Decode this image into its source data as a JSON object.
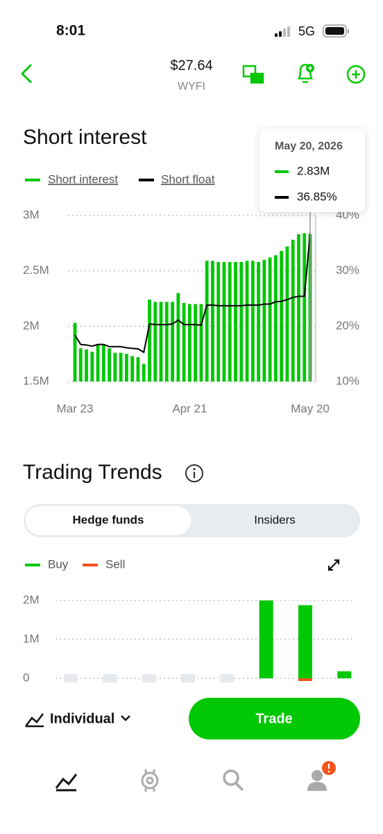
{
  "status_bar": {
    "time": "8:01",
    "network": "5G"
  },
  "header": {
    "price": "$27.64",
    "ticker": "WYFI"
  },
  "chart_data": [
    {
      "type": "bar",
      "title": "Short interest",
      "categories": [
        "Mar 23",
        null,
        null,
        null,
        null,
        null,
        null,
        null,
        null,
        null,
        null,
        null,
        null,
        null,
        null,
        null,
        null,
        null,
        null,
        null,
        "Apr 21",
        null,
        null,
        null,
        null,
        null,
        null,
        null,
        null,
        null,
        null,
        null,
        null,
        null,
        null,
        null,
        null,
        null,
        null,
        null,
        null,
        "May 20"
      ],
      "series": [
        {
          "name": "Short interest",
          "color": "#00c805",
          "values": [
            2030000,
            1800000,
            1790000,
            1770000,
            1830000,
            1830000,
            1800000,
            1760000,
            1760000,
            1750000,
            1730000,
            1720000,
            1660000,
            2240000,
            2220000,
            2220000,
            2220000,
            2220000,
            2300000,
            2210000,
            2200000,
            2200000,
            2200000,
            2590000,
            2590000,
            2580000,
            2580000,
            2580000,
            2580000,
            2580000,
            2590000,
            2590000,
            2580000,
            2600000,
            2620000,
            2640000,
            2680000,
            2720000,
            2780000,
            2830000,
            2840000,
            2830000
          ]
        },
        {
          "name": "Short float",
          "color": "#000000",
          "type": "line",
          "axis": "y2",
          "values": [
            18.4,
            16.7,
            16.6,
            16.4,
            16.7,
            16.7,
            16.3,
            16.3,
            16.3,
            16.1,
            16.0,
            15.9,
            15.3,
            20.4,
            20.3,
            20.3,
            20.3,
            20.4,
            21.1,
            20.3,
            20.3,
            20.3,
            20.2,
            23.8,
            23.8,
            23.7,
            23.7,
            23.7,
            23.7,
            23.7,
            23.8,
            23.8,
            23.8,
            24.0,
            24.0,
            24.4,
            24.5,
            24.8,
            25.2,
            25.4,
            25.4,
            36.85
          ]
        }
      ],
      "ylim": [
        1500000,
        3000000
      ],
      "yticks": [
        {
          "value": 1500000,
          "label": "1.5M"
        },
        {
          "value": 2000000,
          "label": "2M"
        },
        {
          "value": 2500000,
          "label": "2.5M"
        },
        {
          "value": 3000000,
          "label": "3M"
        }
      ],
      "y2lim": [
        10,
        40
      ],
      "y2ticks": [
        {
          "value": 10,
          "label": "10%"
        },
        {
          "value": 20,
          "label": "20%"
        },
        {
          "value": 30,
          "label": "30%"
        },
        {
          "value": 40,
          "label": "40%"
        }
      ],
      "grid": true,
      "tooltip": {
        "title": "May 20, 2026",
        "lines": [
          "2.83M",
          "36.85%"
        ]
      }
    },
    {
      "type": "bar",
      "title": "Trading Trends",
      "tabs": [
        "Hedge funds",
        "Insiders"
      ],
      "categories": [
        null,
        null,
        null,
        null,
        null,
        null,
        null,
        null
      ],
      "series": [
        {
          "name": "Buy",
          "color": "#00c805",
          "values": [
            0,
            0,
            0,
            0,
            0,
            2000000,
            1880000,
            180000
          ]
        },
        {
          "name": "Sell",
          "color": "#f2531d",
          "values": [
            0,
            0,
            0,
            0,
            0,
            0,
            -70000,
            0
          ]
        }
      ],
      "ylim": [
        0,
        2200000
      ],
      "yticks": [
        0,
        {
          "value": 1000000,
          "label": "1M"
        },
        {
          "value": 2000000,
          "label": "2M"
        }
      ],
      "grid": true
    }
  ],
  "bottom_bar": {
    "account": "Individual",
    "button": "Trade"
  }
}
